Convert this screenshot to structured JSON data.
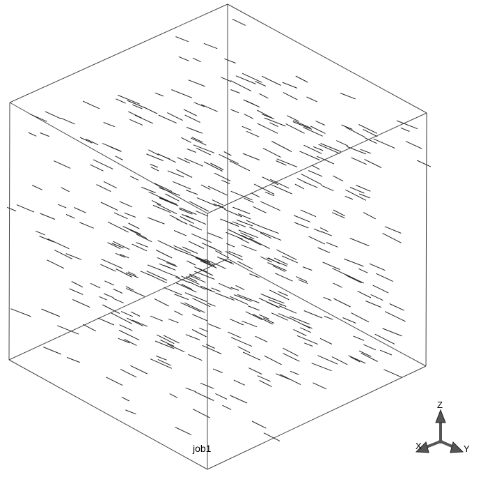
{
  "viewport": {
    "job_name": "job1",
    "background_color": "#ffffff",
    "line_color": "#000000"
  },
  "triad": {
    "axis_z_label": "Z",
    "axis_x_label": "X",
    "axis_y_label": "Y",
    "arrow_color": "#555555"
  }
}
